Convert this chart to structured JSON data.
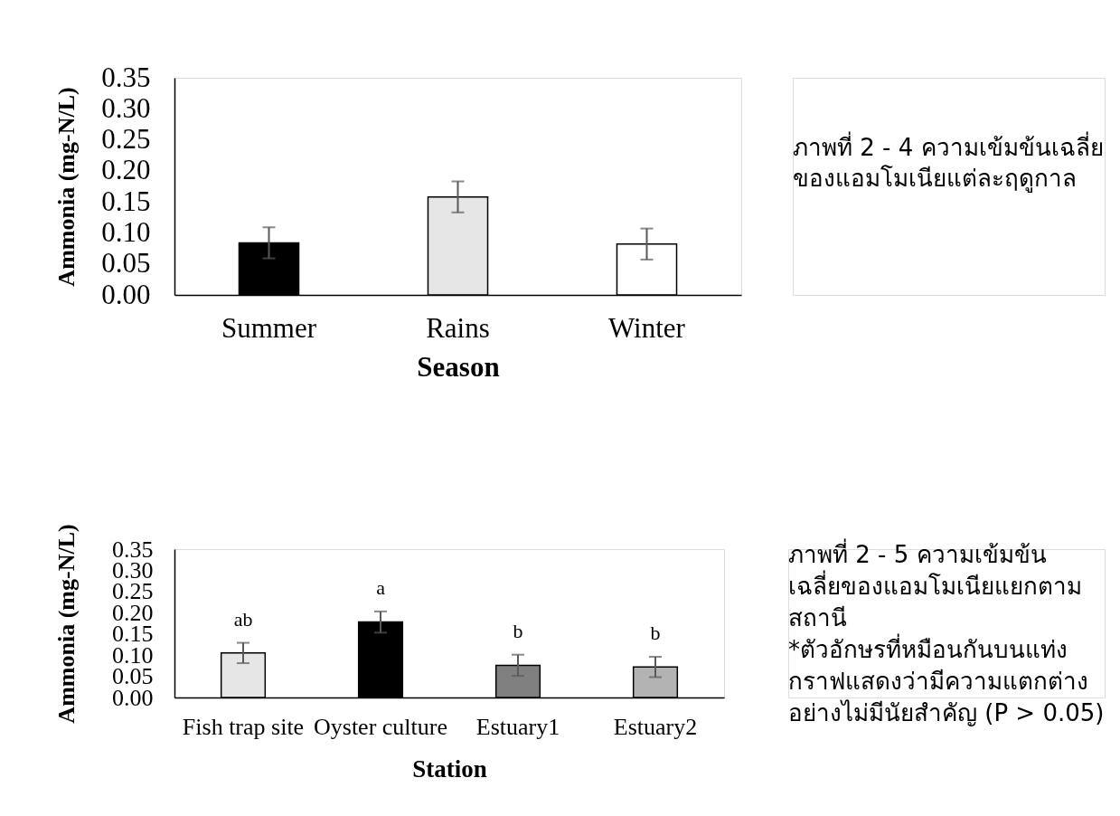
{
  "chart_data": [
    {
      "type": "bar",
      "xlabel": "Season",
      "ylabel": "Ammonia (mg-N/L)",
      "categories": [
        "Summer",
        "Rains",
        "Winter"
      ],
      "values": [
        0.084,
        0.158,
        0.082
      ],
      "errors": [
        0.025,
        0.025,
        0.025
      ],
      "colors": [
        "#000000",
        "#e6e6e6",
        "#ffffff"
      ],
      "ylim": [
        0,
        0.35
      ],
      "yticks": [
        {
          "value": 0,
          "label": "0.00"
        },
        0.05,
        {
          "value": 0.1,
          "label": "0.10"
        },
        0.15,
        {
          "value": 0.2,
          "label": "0.20"
        },
        0.25,
        {
          "value": 0.3,
          "label": "0.30"
        },
        0.35
      ]
    },
    {
      "type": "other",
      "title": "ภาพที่ 2 - 4 ความเข้มข้นเฉลี่ย\nของแอมโมเนียแต่ละฤดูกาล"
    },
    {
      "type": "bar",
      "xlabel": "Station",
      "ylabel": "Ammonia (mg-N/L)",
      "categories": [
        "Fish trap site",
        "Oyster culture",
        "Estuary1",
        "Estuary2"
      ],
      "values": [
        0.105,
        0.178,
        0.076,
        0.072
      ],
      "errors": [
        0.024,
        0.025,
        0.025,
        0.024
      ],
      "value_labels": [
        "ab",
        "a",
        "b",
        "b"
      ],
      "colors": [
        "#e6e6e6",
        "#000000",
        "#808080",
        "#b3b3b3"
      ],
      "ylim": [
        0,
        0.35
      ],
      "yticks": [
        {
          "value": 0,
          "label": "0.00"
        },
        0.05,
        {
          "value": 0.1,
          "label": "0.10"
        },
        0.15,
        {
          "value": 0.2,
          "label": "0.20"
        },
        0.25,
        {
          "value": 0.3,
          "label": "0.30"
        },
        0.35
      ]
    },
    {
      "type": "other",
      "title": "ภาพที่ 2 - 5 ความเข้มข้น\nเฉลี่ยของแอมโมเนียแยกตาม\nสถานี",
      "annotations": [
        "*ตัวอักษรที่หมือนกันบนแท่ง\nกราฟแสดงว่ามีความแตกต่าง\nอย่างไม่มีนัยสำคัญ (P > 0.05)"
      ]
    }
  ]
}
